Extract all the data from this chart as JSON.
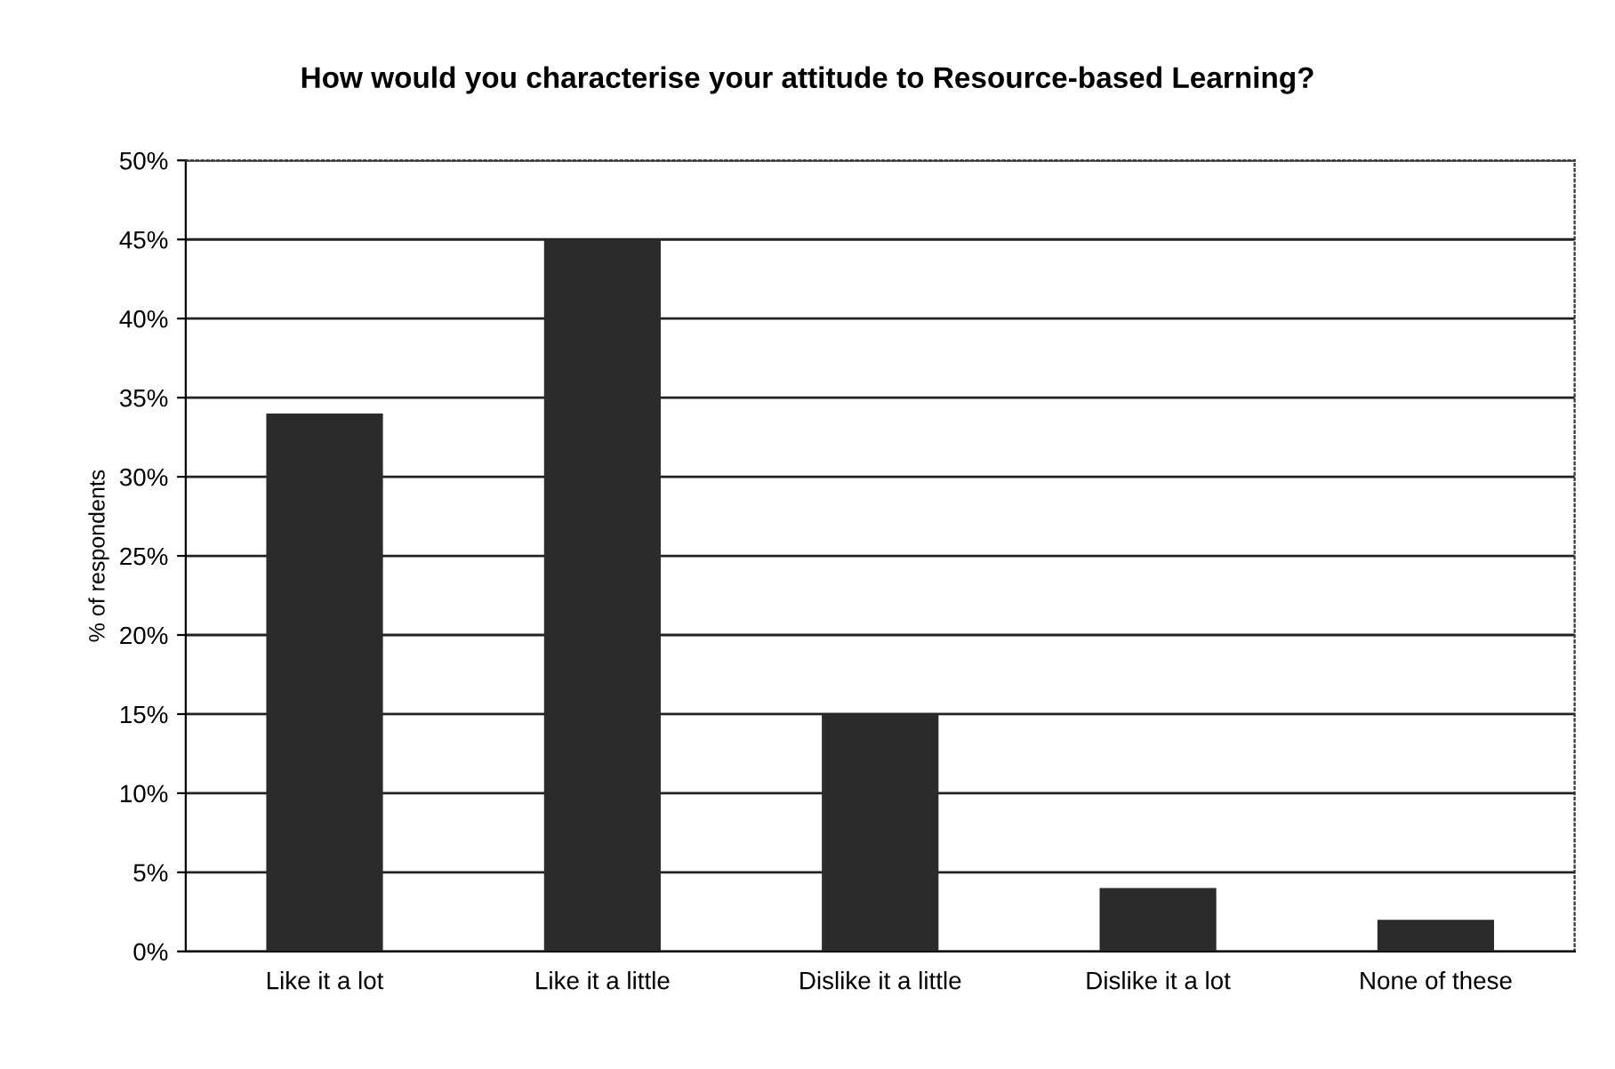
{
  "chart_data": {
    "type": "bar",
    "title": "How would you characterise your attitude to Resource-based Learning?",
    "ylabel": "% of respondents",
    "categories": [
      "Like it a lot",
      "Like it a little",
      "Dislike it a little",
      "Dislike it a lot",
      "None of these"
    ],
    "values": [
      34,
      45,
      15,
      4,
      2
    ],
    "color": "#2b2b2b",
    "ylim": [
      0,
      50
    ],
    "yticks": [
      {
        "value": 0,
        "label": "0%"
      },
      {
        "value": 5,
        "label": "5%"
      },
      {
        "value": 10,
        "label": "10%"
      },
      {
        "value": 15,
        "label": "15%"
      },
      {
        "value": 20,
        "label": "20%"
      },
      {
        "value": 25,
        "label": "25%"
      },
      {
        "value": 30,
        "label": "30%"
      },
      {
        "value": 35,
        "label": "35%"
      },
      {
        "value": 40,
        "label": "40%"
      },
      {
        "value": 45,
        "label": "45%"
      },
      {
        "value": 50,
        "label": "50%"
      }
    ],
    "grid": "y"
  }
}
